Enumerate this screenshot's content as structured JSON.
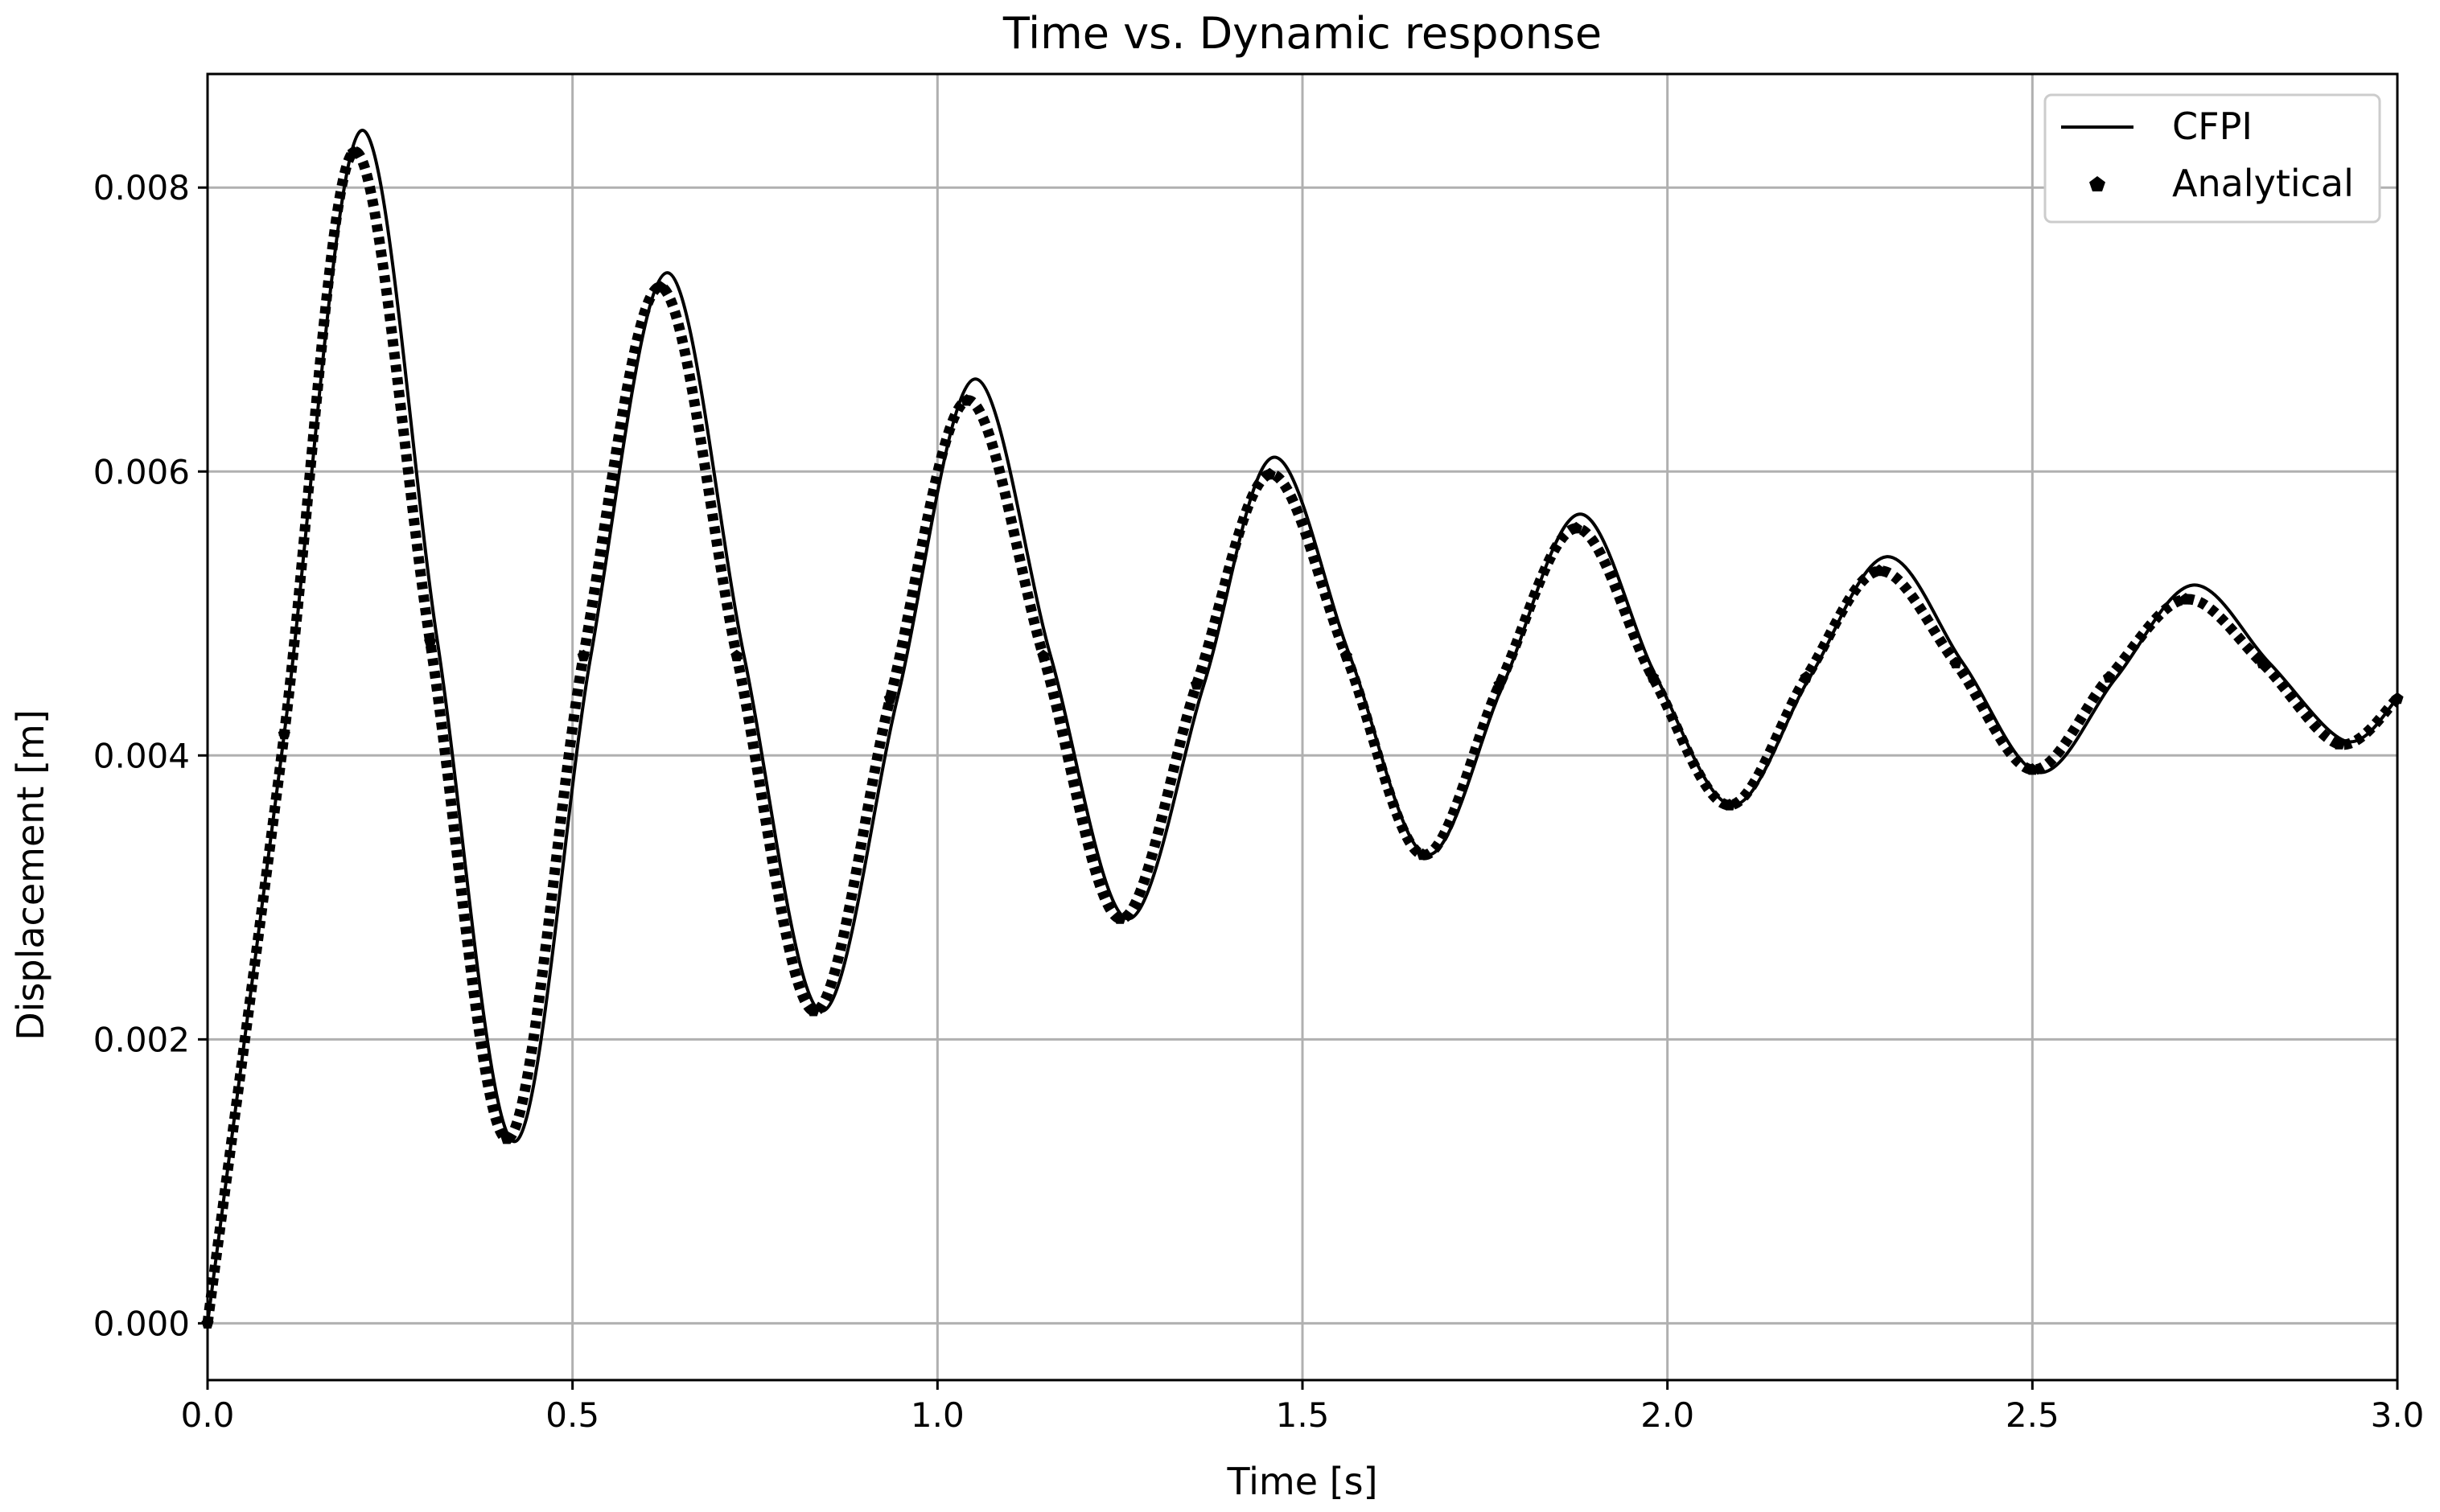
{
  "chart_data": {
    "type": "line",
    "title": "Time vs. Dynamic response",
    "xlabel": "Time [s]",
    "ylabel": "Displacement [m]",
    "xlim": [
      0.0,
      3.0
    ],
    "ylim": [
      -0.0004,
      0.0088
    ],
    "xticks": [
      0.0,
      0.5,
      1.0,
      1.5,
      2.0,
      2.5,
      3.0
    ],
    "xtick_labels": [
      "0.0",
      "0.5",
      "1.0",
      "1.5",
      "2.0",
      "2.5",
      "3.0"
    ],
    "yticks": [
      0.0,
      0.002,
      0.004,
      0.006,
      0.008
    ],
    "ytick_labels": [
      "0.000",
      "0.002",
      "0.004",
      "0.006",
      "0.008"
    ],
    "grid": true,
    "legend_position": "top-right",
    "legend": [
      "CFPI",
      "Analytical"
    ],
    "series": [
      {
        "name": "CFPI",
        "style": "line",
        "color": "#000000",
        "x": [
          0.0,
          0.105,
          0.21,
          0.315,
          0.42,
          0.525,
          0.63,
          0.735,
          0.84,
          0.945,
          1.05,
          1.155,
          1.26,
          1.365,
          1.46,
          1.565,
          1.67,
          1.775,
          1.88,
          1.985,
          2.09,
          2.195,
          2.3,
          2.405,
          2.51,
          2.615,
          2.72,
          2.825,
          2.93,
          3.0
        ],
        "y": [
          0.0,
          0.00415,
          0.0084,
          0.0048,
          0.00128,
          0.0047,
          0.0074,
          0.0047,
          0.0022,
          0.0044,
          0.00665,
          0.0047,
          0.00285,
          0.0045,
          0.0061,
          0.0047,
          0.0033,
          0.0045,
          0.0057,
          0.00455,
          0.00365,
          0.00455,
          0.0054,
          0.00465,
          0.00388,
          0.00455,
          0.0052,
          0.00465,
          0.0041,
          0.0044
        ]
      },
      {
        "name": "Analytical",
        "style": "markers",
        "color": "#000000",
        "x": [
          0.0,
          0.105,
          0.2,
          0.305,
          0.41,
          0.515,
          0.62,
          0.725,
          0.83,
          0.935,
          1.04,
          1.145,
          1.25,
          1.355,
          1.455,
          1.56,
          1.665,
          1.77,
          1.875,
          1.98,
          2.085,
          2.19,
          2.29,
          2.395,
          2.5,
          2.605,
          2.71,
          2.815,
          2.92,
          3.0
        ],
        "y": [
          0.0,
          0.00415,
          0.00825,
          0.0048,
          0.0013,
          0.0047,
          0.0073,
          0.0047,
          0.0022,
          0.0044,
          0.0065,
          0.0047,
          0.00285,
          0.0045,
          0.00598,
          0.0047,
          0.0033,
          0.0045,
          0.0056,
          0.00455,
          0.00365,
          0.00455,
          0.0053,
          0.00465,
          0.0039,
          0.00455,
          0.0051,
          0.00465,
          0.00408,
          0.0044
        ]
      }
    ]
  }
}
